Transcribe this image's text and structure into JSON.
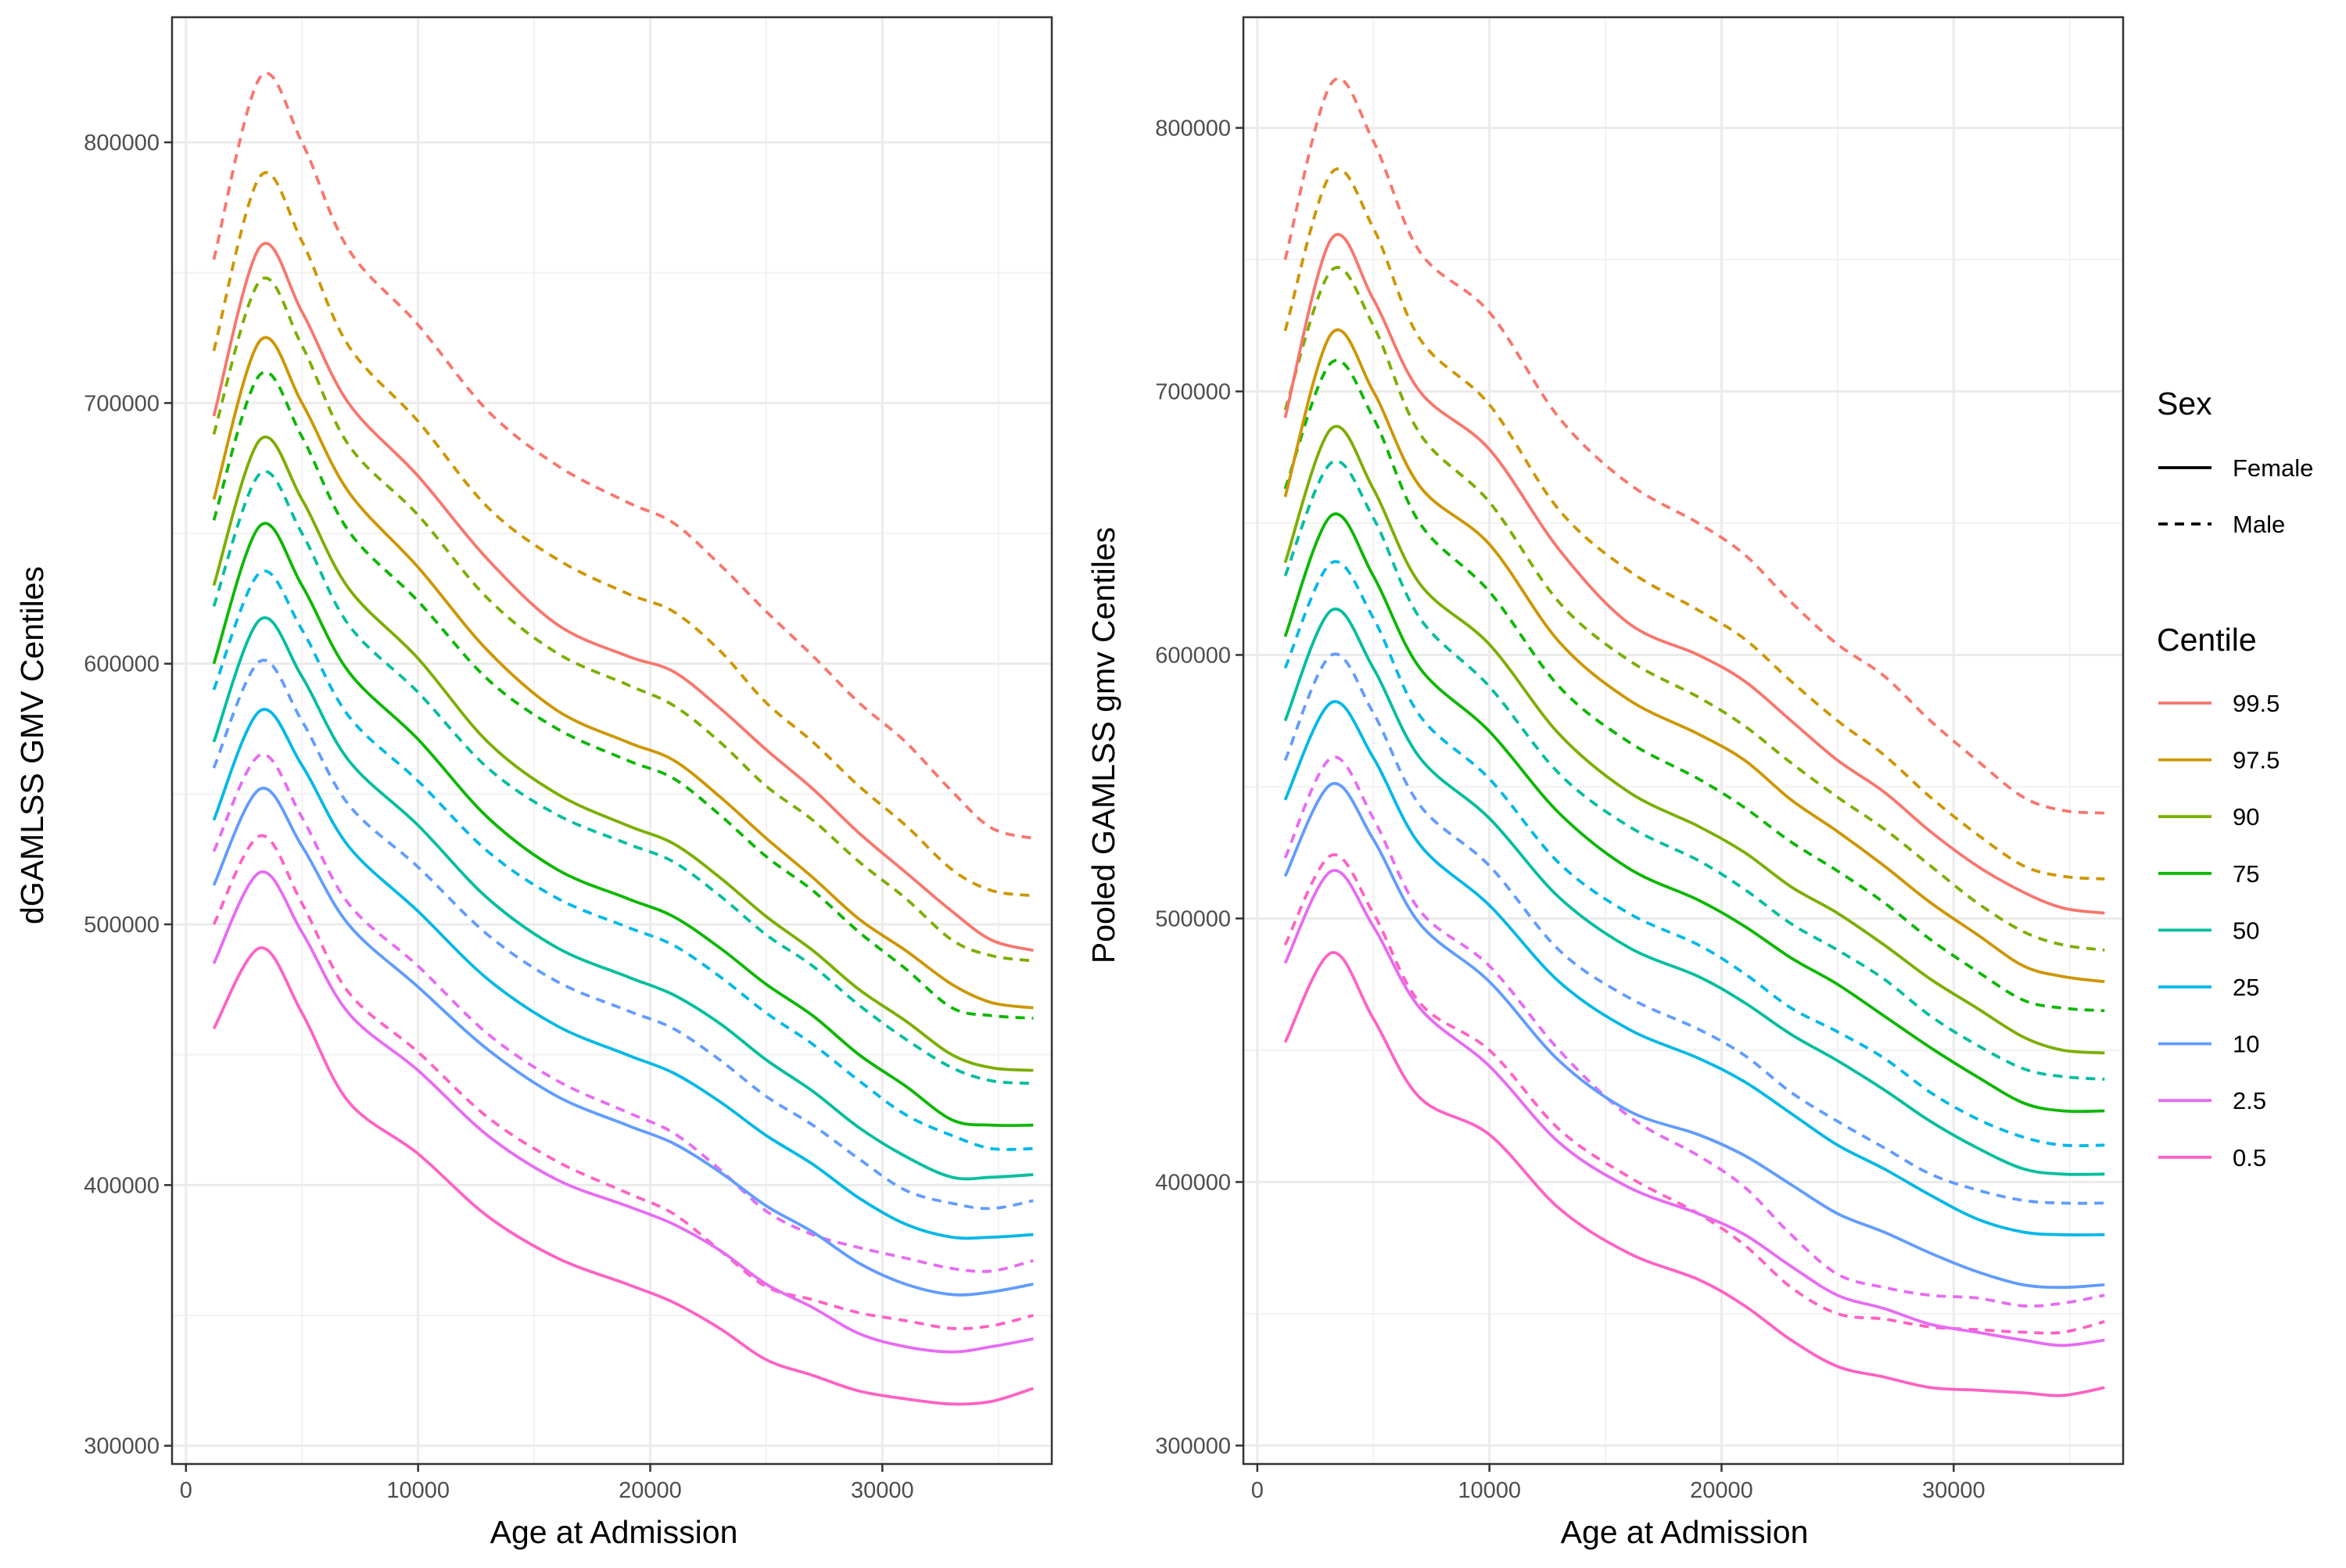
{
  "chart_data": [
    {
      "type": "line",
      "panel": "left",
      "xlabel": "Age at Admission",
      "ylabel": "dGAMLSS GMV Centiles",
      "xlim": [
        -600,
        37300
      ],
      "ylim": [
        293000,
        848000
      ],
      "x_ticks": [
        0,
        10000,
        20000,
        30000
      ],
      "x_tick_labels": [
        "0",
        "10000",
        "20000",
        "30000"
      ],
      "y_ticks": [
        300000,
        400000,
        500000,
        600000,
        700000,
        800000
      ],
      "y_tick_labels": [
        "300000",
        "400000",
        "500000",
        "600000",
        "700000",
        "800000"
      ],
      "grid": true,
      "x": [
        1200,
        3200,
        5000,
        7000,
        10000,
        13000,
        16000,
        19000,
        21000,
        23000,
        25000,
        27000,
        29000,
        31000,
        33000,
        34700,
        36500
      ],
      "series": [
        {
          "centile": "99.5",
          "sex": "Female",
          "values": [
            695000,
            760000,
            735000,
            700000,
            672000,
            640000,
            615000,
            603000,
            597000,
            583000,
            567000,
            552000,
            535000,
            520000,
            505000,
            494000,
            490000
          ]
        },
        {
          "centile": "97.5",
          "sex": "Female",
          "values": [
            663000,
            724000,
            700000,
            666000,
            637000,
            605000,
            582000,
            570000,
            563000,
            549000,
            533000,
            518000,
            502000,
            490000,
            477000,
            470000,
            468000
          ]
        },
        {
          "centile": "90",
          "sex": "Female",
          "values": [
            630000,
            686000,
            663000,
            629000,
            602000,
            570000,
            550000,
            538000,
            531000,
            518000,
            503000,
            490000,
            475000,
            463000,
            450000,
            445000,
            444000
          ]
        },
        {
          "centile": "75",
          "sex": "Female",
          "values": [
            600000,
            653000,
            630000,
            597000,
            571000,
            541000,
            521000,
            510000,
            503000,
            491000,
            477000,
            465000,
            450000,
            438000,
            425000,
            423000,
            423000
          ]
        },
        {
          "centile": "50",
          "sex": "Female",
          "values": [
            570000,
            617000,
            595000,
            563000,
            538000,
            510000,
            491000,
            480000,
            473000,
            462000,
            448000,
            436000,
            422000,
            411000,
            403000,
            403000,
            404000
          ]
        },
        {
          "centile": "25",
          "sex": "Female",
          "values": [
            540000,
            582000,
            561000,
            530000,
            505000,
            479000,
            461000,
            450000,
            443000,
            432000,
            419000,
            408000,
            395000,
            385000,
            380000,
            380000,
            381000
          ]
        },
        {
          "centile": "10",
          "sex": "Female",
          "values": [
            515000,
            552000,
            530000,
            500000,
            476000,
            452000,
            434000,
            423000,
            416000,
            405000,
            392000,
            382000,
            370000,
            362000,
            358000,
            359000,
            362000
          ]
        },
        {
          "centile": "2.5",
          "sex": "Female",
          "values": [
            485000,
            520000,
            497000,
            466000,
            444000,
            419000,
            402000,
            392000,
            385000,
            375000,
            362000,
            353000,
            343000,
            338000,
            336000,
            338000,
            341000
          ]
        },
        {
          "centile": "0.5",
          "sex": "Female",
          "values": [
            460000,
            491000,
            466000,
            432000,
            412000,
            388000,
            372000,
            362000,
            355000,
            345000,
            333000,
            327000,
            321000,
            318000,
            316000,
            317000,
            322000
          ]
        },
        {
          "centile": "99.5",
          "sex": "Male",
          "values": [
            755000,
            825000,
            800000,
            759000,
            730000,
            697000,
            676000,
            662000,
            654000,
            638000,
            620000,
            603000,
            585000,
            570000,
            551000,
            537000,
            533000
          ]
        },
        {
          "centile": "97.5",
          "sex": "Male",
          "values": [
            720000,
            787000,
            762000,
            722000,
            693000,
            660000,
            640000,
            627000,
            620000,
            605000,
            585000,
            570000,
            553000,
            538000,
            521000,
            513000,
            511000
          ]
        },
        {
          "centile": "90",
          "sex": "Male",
          "values": [
            688000,
            747000,
            722000,
            684000,
            657000,
            625000,
            604000,
            592000,
            584000,
            570000,
            553000,
            540000,
            524000,
            510000,
            494000,
            488000,
            486000
          ]
        },
        {
          "centile": "75",
          "sex": "Male",
          "values": [
            655000,
            711000,
            687000,
            651000,
            624000,
            594000,
            575000,
            563000,
            556000,
            542000,
            526000,
            513000,
            497000,
            483000,
            468000,
            465000,
            464000
          ]
        },
        {
          "centile": "50",
          "sex": "Male",
          "values": [
            622000,
            673000,
            650000,
            615000,
            589000,
            560000,
            542000,
            531000,
            524000,
            511000,
            496000,
            484000,
            469000,
            456000,
            445000,
            440000,
            439000
          ]
        },
        {
          "centile": "25",
          "sex": "Male",
          "values": [
            590000,
            635000,
            613000,
            580000,
            555000,
            528000,
            510000,
            499000,
            492000,
            480000,
            466000,
            454000,
            440000,
            427000,
            419000,
            414000,
            414000
          ]
        },
        {
          "centile": "10",
          "sex": "Male",
          "values": [
            560000,
            601000,
            578000,
            546000,
            522000,
            496000,
            478000,
            467000,
            460000,
            448000,
            434000,
            423000,
            410000,
            398000,
            393000,
            391000,
            394000
          ]
        },
        {
          "centile": "2.5",
          "sex": "Male",
          "values": [
            528000,
            565000,
            541000,
            508000,
            484000,
            458000,
            440000,
            428000,
            420000,
            406000,
            390000,
            381000,
            376000,
            372000,
            368000,
            367000,
            371000
          ]
        },
        {
          "centile": "0.5",
          "sex": "Male",
          "values": [
            500000,
            534000,
            508000,
            474000,
            451000,
            426000,
            409000,
            397000,
            389000,
            375000,
            361000,
            356000,
            351000,
            348000,
            345000,
            346000,
            350000
          ]
        }
      ]
    },
    {
      "type": "line",
      "panel": "right",
      "xlabel": "Age at Admission",
      "ylabel": "Pooled GAMLSS gmv Centiles",
      "xlim": [
        -600,
        37300
      ],
      "ylim": [
        293000,
        842000
      ],
      "x_ticks": [
        0,
        10000,
        20000,
        30000
      ],
      "x_tick_labels": [
        "0",
        "10000",
        "20000",
        "30000"
      ],
      "y_ticks": [
        300000,
        400000,
        500000,
        600000,
        700000,
        800000
      ],
      "y_tick_labels": [
        "300000",
        "400000",
        "500000",
        "600000",
        "700000",
        "800000"
      ],
      "grid": true,
      "x": [
        1200,
        3200,
        5000,
        7000,
        10000,
        13000,
        16000,
        19000,
        21000,
        23000,
        25000,
        27000,
        29000,
        31000,
        33000,
        34700,
        36500
      ],
      "series": [
        {
          "centile": "99.5",
          "sex": "Female",
          "values": [
            690000,
            758000,
            735000,
            700000,
            678000,
            640000,
            612000,
            600000,
            590000,
            575000,
            560000,
            548000,
            533000,
            520000,
            510000,
            504000,
            502000
          ]
        },
        {
          "centile": "97.5",
          "sex": "Female",
          "values": [
            660000,
            722000,
            700000,
            664000,
            642000,
            605000,
            583000,
            570000,
            560000,
            545000,
            533000,
            520000,
            506000,
            494000,
            482000,
            478000,
            476000
          ]
        },
        {
          "centile": "90",
          "sex": "Female",
          "values": [
            635000,
            686000,
            663000,
            627000,
            604000,
            570000,
            548000,
            535000,
            525000,
            512000,
            502000,
            490000,
            477000,
            466000,
            455000,
            450000,
            449000
          ]
        },
        {
          "centile": "75",
          "sex": "Female",
          "values": [
            607000,
            653000,
            630000,
            595000,
            571000,
            540000,
            519000,
            507000,
            497000,
            485000,
            475000,
            463000,
            451000,
            440000,
            430000,
            427000,
            427000
          ]
        },
        {
          "centile": "50",
          "sex": "Female",
          "values": [
            575000,
            617000,
            595000,
            561000,
            538000,
            508000,
            489000,
            478000,
            468000,
            456000,
            446000,
            435000,
            423000,
            413000,
            405000,
            403000,
            403000
          ]
        },
        {
          "centile": "25",
          "sex": "Female",
          "values": [
            545000,
            582000,
            561000,
            528000,
            505000,
            476000,
            458000,
            447000,
            438000,
            426000,
            414000,
            405000,
            395000,
            386000,
            381000,
            380000,
            380000
          ]
        },
        {
          "centile": "10",
          "sex": "Female",
          "values": [
            516000,
            551000,
            530000,
            498000,
            476000,
            446000,
            427000,
            418000,
            410000,
            399000,
            388000,
            381000,
            373000,
            366000,
            361000,
            360000,
            361000
          ]
        },
        {
          "centile": "2.5",
          "sex": "Female",
          "values": [
            483000,
            518000,
            497000,
            466000,
            444000,
            415000,
            398000,
            388000,
            380000,
            368000,
            357000,
            352000,
            346000,
            343000,
            340000,
            338000,
            340000
          ]
        },
        {
          "centile": "0.5",
          "sex": "Female",
          "values": [
            453000,
            487000,
            462000,
            432000,
            418000,
            390000,
            373000,
            363000,
            353000,
            340000,
            330000,
            326000,
            322000,
            321000,
            320000,
            319000,
            322000
          ]
        },
        {
          "centile": "99.5",
          "sex": "Male",
          "values": [
            750000,
            817000,
            795000,
            753000,
            730000,
            690000,
            665000,
            650000,
            638000,
            620000,
            604000,
            592000,
            575000,
            560000,
            546000,
            541000,
            540000
          ]
        },
        {
          "centile": "97.5",
          "sex": "Male",
          "values": [
            723000,
            783000,
            762000,
            720000,
            695000,
            655000,
            632000,
            617000,
            606000,
            590000,
            575000,
            562000,
            546000,
            532000,
            520000,
            516000,
            515000
          ]
        },
        {
          "centile": "90",
          "sex": "Male",
          "values": [
            693000,
            746000,
            725000,
            684000,
            658000,
            620000,
            598000,
            584000,
            573000,
            559000,
            546000,
            534000,
            520000,
            506000,
            495000,
            490000,
            488000
          ]
        },
        {
          "centile": "75",
          "sex": "Male",
          "values": [
            663000,
            711000,
            690000,
            650000,
            624000,
            588000,
            567000,
            553000,
            542000,
            529000,
            518000,
            506000,
            492000,
            480000,
            469000,
            466000,
            465000
          ]
        },
        {
          "centile": "50",
          "sex": "Male",
          "values": [
            630000,
            673000,
            652000,
            614000,
            588000,
            555000,
            535000,
            522000,
            511000,
            498000,
            488000,
            477000,
            463000,
            452000,
            443000,
            440000,
            439000
          ]
        },
        {
          "centile": "25",
          "sex": "Male",
          "values": [
            595000,
            635000,
            614000,
            577000,
            553000,
            521000,
            502000,
            490000,
            479000,
            466000,
            457000,
            447000,
            434000,
            424000,
            417000,
            414000,
            414000
          ]
        },
        {
          "centile": "10",
          "sex": "Male",
          "values": [
            560000,
            600000,
            578000,
            543000,
            520000,
            488000,
            470000,
            458000,
            448000,
            434000,
            423000,
            413000,
            403000,
            397000,
            393000,
            392000,
            392000
          ]
        },
        {
          "centile": "2.5",
          "sex": "Male",
          "values": [
            523000,
            561000,
            538000,
            503000,
            482000,
            450000,
            425000,
            410000,
            398000,
            380000,
            365000,
            360000,
            357000,
            356000,
            353000,
            354000,
            357000
          ]
        },
        {
          "centile": "0.5",
          "sex": "Male",
          "values": [
            490000,
            524000,
            502000,
            468000,
            450000,
            420000,
            402000,
            388000,
            376000,
            360000,
            350000,
            348000,
            345000,
            344000,
            343000,
            343000,
            347000
          ]
        }
      ]
    }
  ],
  "legend": {
    "placement": "right",
    "sex_title": "Sex",
    "sex_items": [
      {
        "label": "Female",
        "dash": "solid"
      },
      {
        "label": "Male",
        "dash": "dashed"
      }
    ],
    "centile_title": "Centile",
    "centile_items": [
      {
        "label": "99.5",
        "color": "#F8766D"
      },
      {
        "label": "97.5",
        "color": "#CD9600"
      },
      {
        "label": "90",
        "color": "#7CAE00"
      },
      {
        "label": "75",
        "color": "#0CB702"
      },
      {
        "label": "50",
        "color": "#00BE9D"
      },
      {
        "label": "25",
        "color": "#00B8E7"
      },
      {
        "label": "10",
        "color": "#619CFF"
      },
      {
        "label": "2.5",
        "color": "#E76BF3"
      },
      {
        "label": "0.5",
        "color": "#FF61C3"
      }
    ]
  }
}
